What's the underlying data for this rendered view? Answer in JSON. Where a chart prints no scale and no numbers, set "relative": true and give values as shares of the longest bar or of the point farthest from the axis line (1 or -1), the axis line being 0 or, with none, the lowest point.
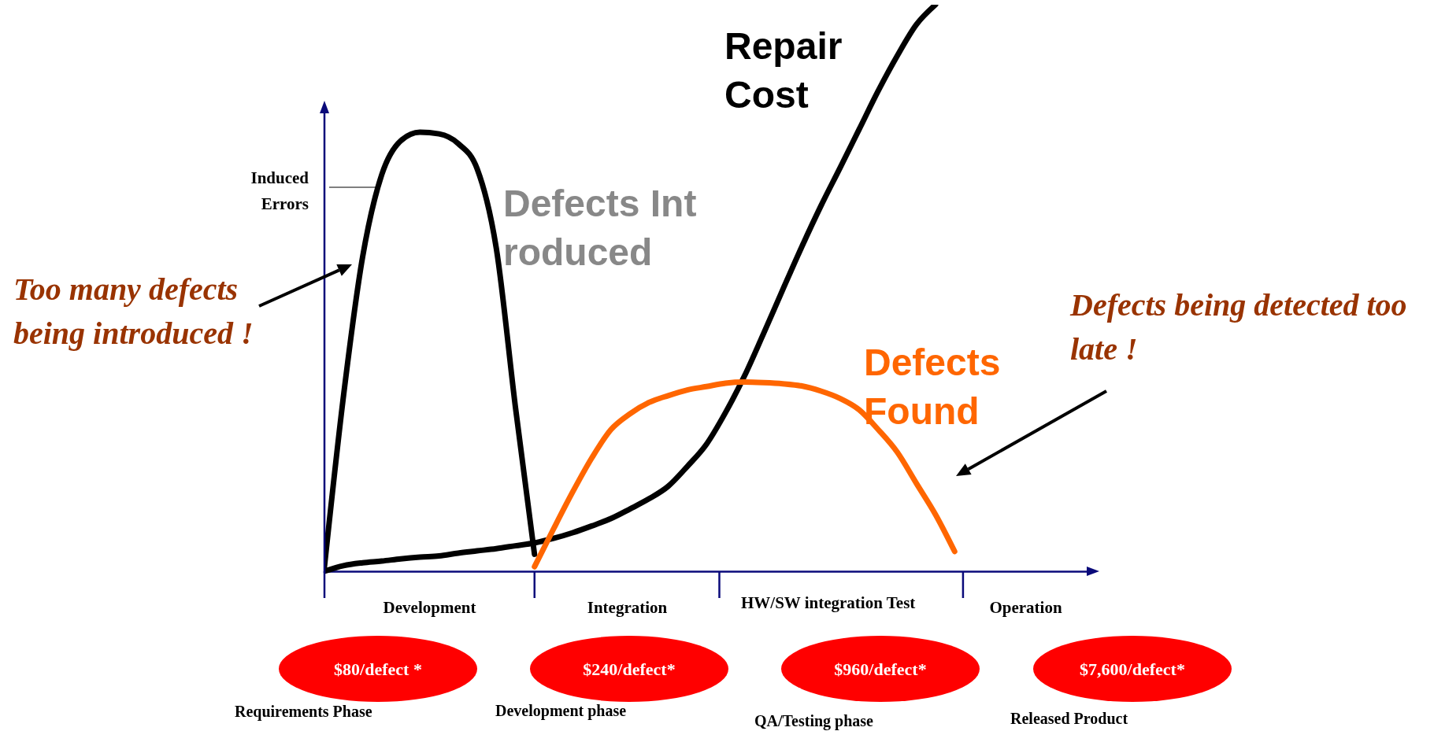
{
  "chart_data": {
    "type": "line",
    "relative": true,
    "categories": [
      null,
      null,
      null,
      null,
      null,
      null,
      null,
      null,
      null,
      null,
      null,
      null,
      null,
      null,
      null,
      null,
      null,
      null,
      null,
      null,
      null,
      null,
      null,
      null,
      null,
      null,
      null,
      null,
      null,
      null,
      null,
      null,
      null,
      null,
      null,
      null,
      null,
      null,
      null,
      null,
      null
    ],
    "series": [
      {
        "name": "Defects Introduced",
        "color": "#000000",
        "values": [
          0.008,
          0.31,
          0.555,
          0.7,
          0.76,
          0.775,
          0.772,
          0.755,
          0.71,
          0.57,
          0.29,
          0.03,
          null,
          null,
          null,
          null,
          null,
          null,
          null,
          null,
          null,
          null,
          null,
          null,
          null,
          null,
          null,
          null,
          null,
          null,
          null,
          null,
          null,
          null,
          null,
          null,
          null,
          null,
          null,
          null,
          null
        ]
      },
      {
        "name": "Repair Cost",
        "color": "#000000",
        "values": [
          0,
          0.01,
          0.015,
          0.018,
          0.022,
          0.025,
          0.027,
          0.032,
          0.036,
          0.04,
          0.045,
          0.05,
          0.058,
          0.068,
          0.08,
          0.093,
          0.11,
          0.128,
          0.15,
          0.185,
          0.224,
          0.28,
          0.345,
          0.42,
          0.497,
          0.573,
          0.645,
          0.712,
          0.78,
          0.848,
          0.91,
          0.965,
          1,
          null,
          null,
          null,
          null,
          null,
          null,
          null,
          null
        ]
      },
      {
        "name": "Defects Found",
        "color": "#ff6600",
        "values": [
          null,
          null,
          null,
          null,
          null,
          null,
          null,
          null,
          null,
          null,
          null,
          0.008,
          0.075,
          0.14,
          0.2,
          0.25,
          0.278,
          0.298,
          0.31,
          0.32,
          0.326,
          0.332,
          0.334,
          0.333,
          0.331,
          0.327,
          0.318,
          0.305,
          0.285,
          0.25,
          0.21,
          0.155,
          0.1,
          0.035,
          null,
          null,
          null,
          null,
          null,
          null,
          null
        ]
      }
    ],
    "annotations": [
      "Induced Errors",
      "Too many defects being introduced !",
      "Defects being detected too late !",
      "$80/defect *",
      "$240/defect*",
      "$960/defect*",
      "$7,600/defect*",
      "Requirements Phase",
      "Development phase",
      "QA/Testing phase",
      "Released Product",
      "Development",
      "Integration",
      "HW/SW integration Test",
      "Operation"
    ]
  }
}
